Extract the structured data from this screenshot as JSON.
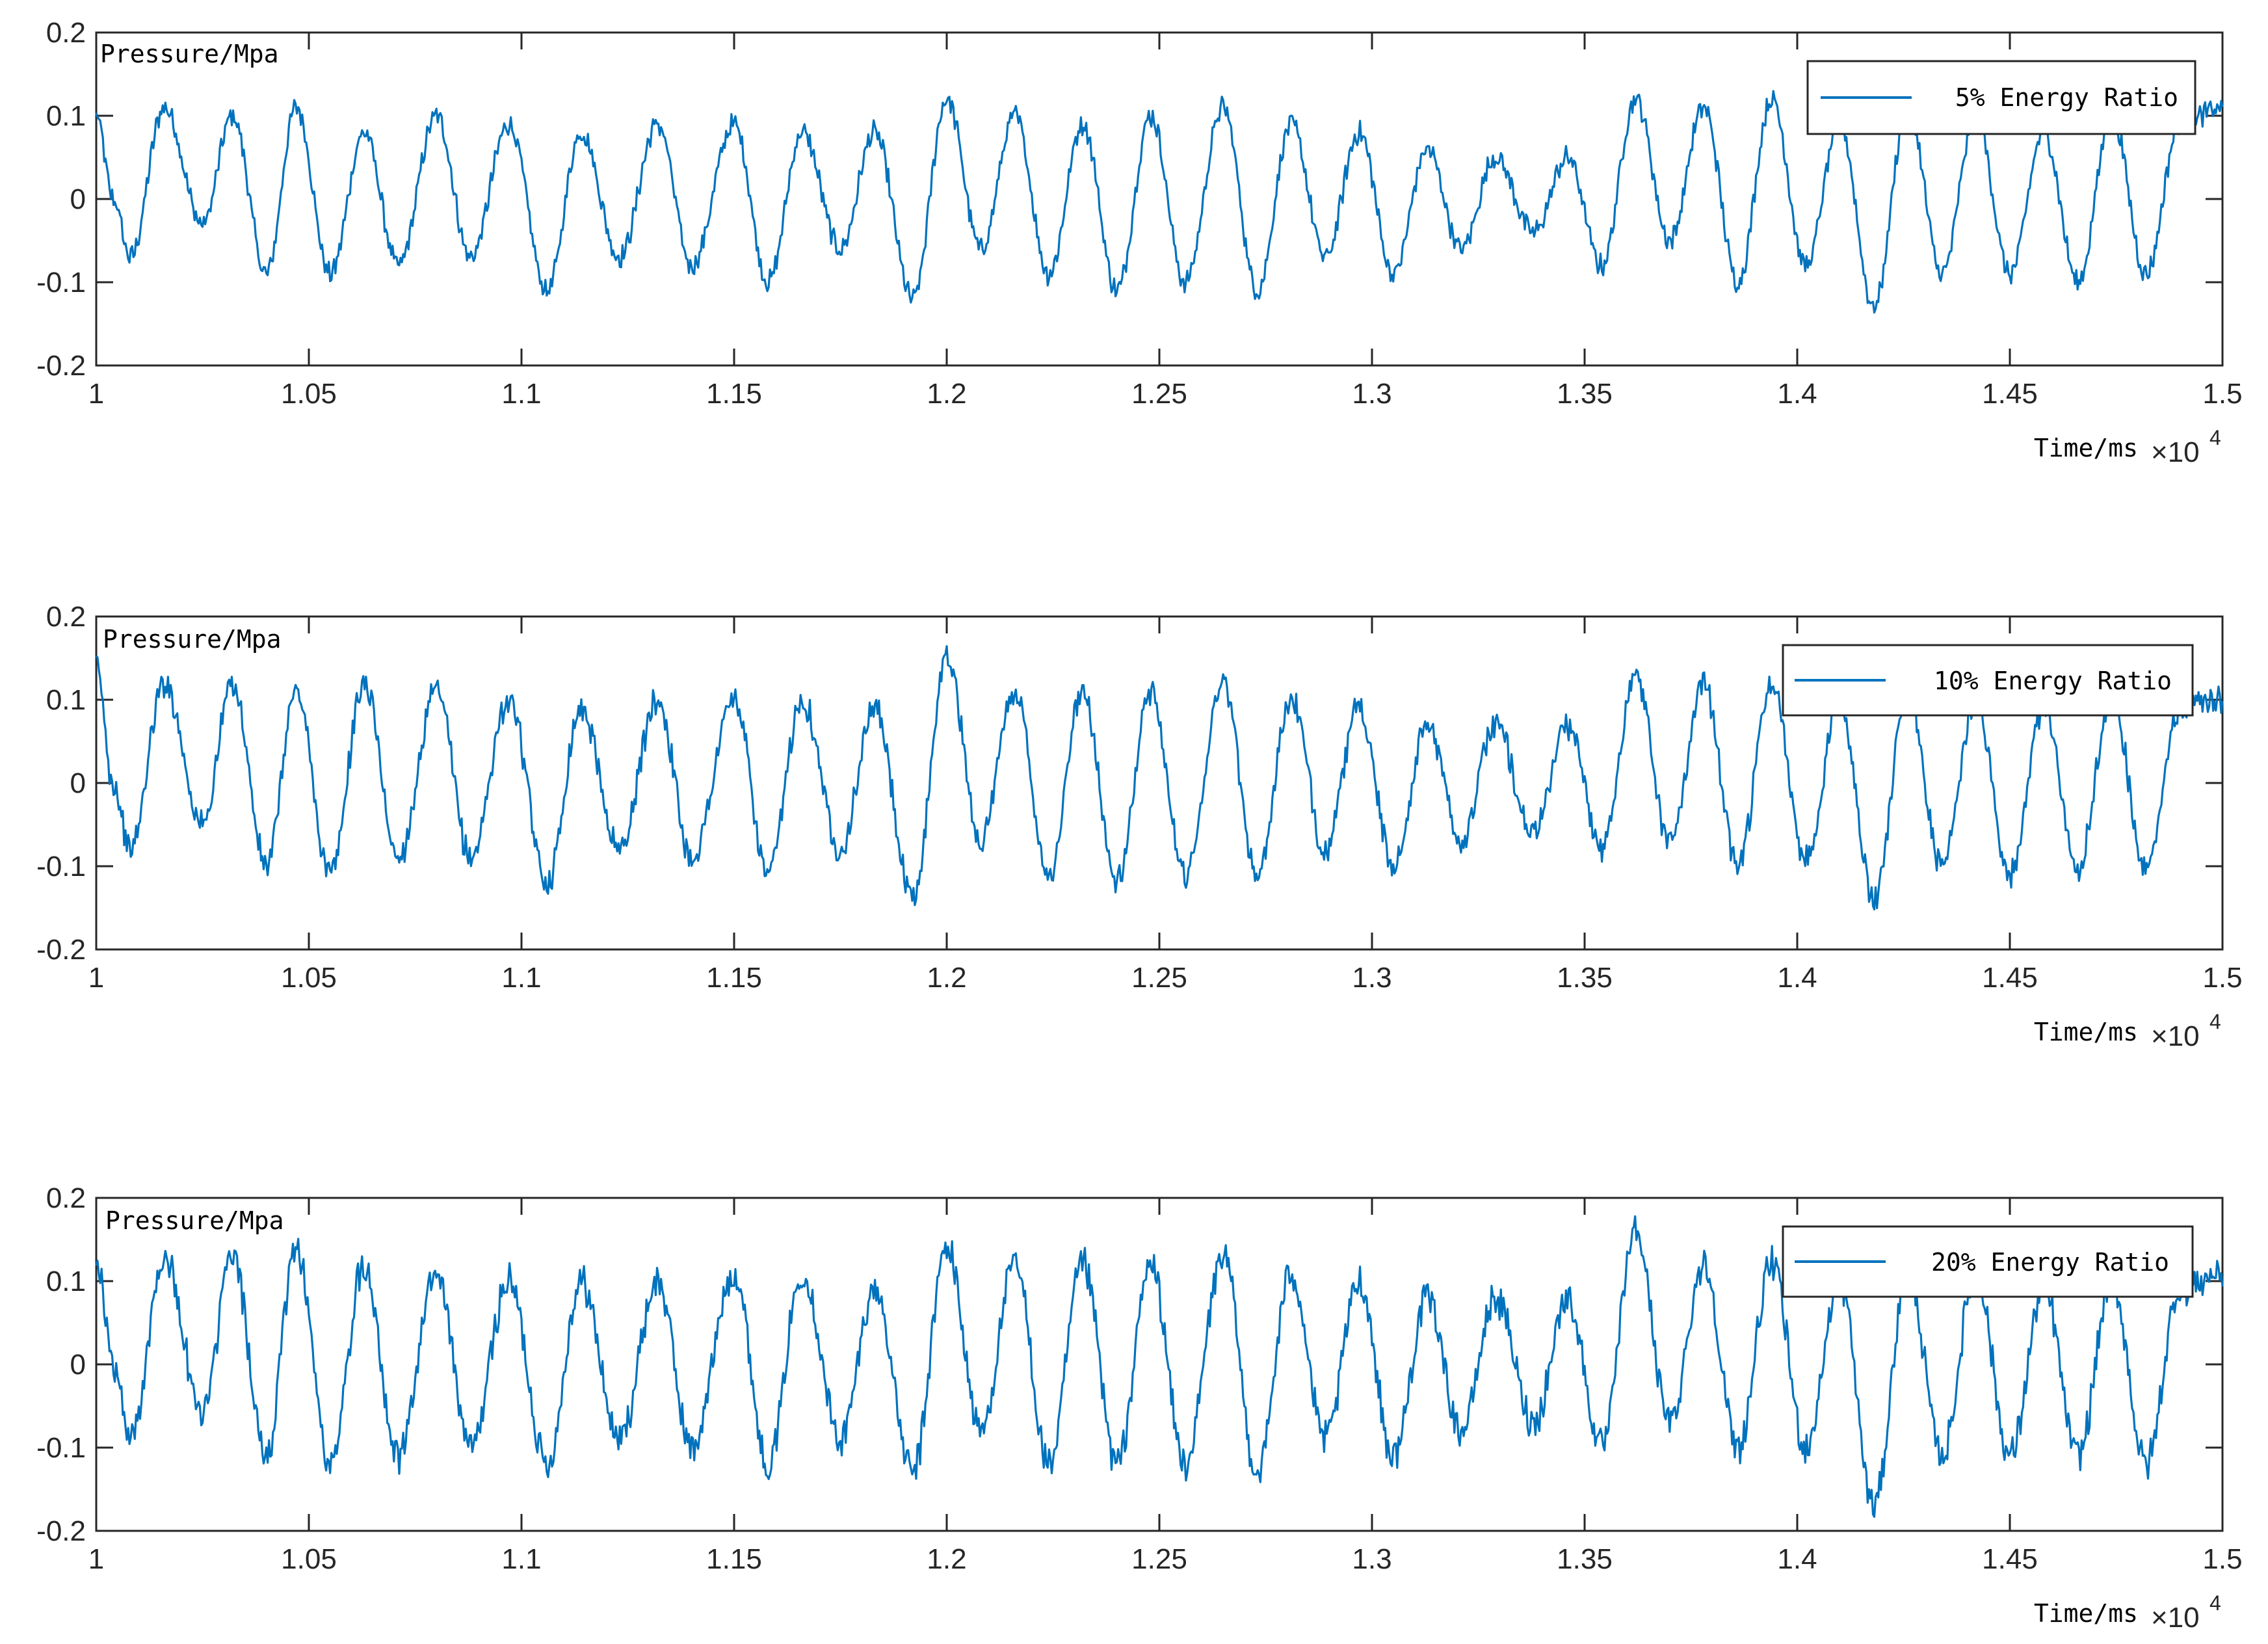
{
  "chart_data": [
    {
      "type": "line",
      "ylabel": "Pressure/Mpa",
      "xlabel": "Time/ms",
      "x_exponent": "×10",
      "x_exponent_power": "4",
      "xlim": [
        1.0,
        1.5
      ],
      "ylim": [
        -0.2,
        0.2
      ],
      "xticks": [
        "1",
        "1.05",
        "1.1",
        "1.15",
        "1.2",
        "1.25",
        "1.3",
        "1.35",
        "1.4",
        "1.45",
        "1.5"
      ],
      "yticks": [
        "0.2",
        "0.1",
        "0",
        "-0.1",
        "-0.2"
      ],
      "grid": false,
      "legend": "top-right",
      "line_color": "#0072BD",
      "series": [
        {
          "name": "5% Energy Ratio",
          "x": [
            1.0,
            1.004,
            1.008,
            1.016,
            1.025,
            1.032,
            1.04,
            1.047,
            1.055,
            1.063,
            1.071,
            1.08,
            1.088,
            1.097,
            1.106,
            1.114,
            1.123,
            1.132,
            1.14,
            1.15,
            1.158,
            1.166,
            1.175,
            1.183,
            1.192,
            1.2,
            1.208,
            1.216,
            1.224,
            1.232,
            1.24,
            1.248,
            1.256,
            1.265,
            1.273,
            1.281,
            1.289,
            1.297,
            1.305,
            1.313,
            1.321,
            1.329,
            1.338,
            1.346,
            1.354,
            1.362,
            1.37,
            1.378,
            1.386,
            1.394,
            1.402,
            1.41,
            1.418,
            1.426,
            1.434,
            1.442,
            1.45,
            1.458,
            1.466,
            1.474,
            1.482,
            1.49,
            1.5
          ],
          "y": [
            0.1,
            0.0,
            -0.07,
            0.11,
            -0.03,
            0.1,
            -0.09,
            0.11,
            -0.09,
            0.08,
            -0.08,
            0.1,
            -0.07,
            0.09,
            -0.11,
            0.08,
            -0.07,
            0.09,
            -0.08,
            0.09,
            -0.1,
            0.08,
            -0.06,
            0.08,
            -0.12,
            0.12,
            -0.06,
            0.1,
            -0.09,
            0.09,
            -0.11,
            0.1,
            -0.1,
            0.11,
            -0.11,
            0.09,
            -0.07,
            0.08,
            -0.09,
            0.06,
            -0.06,
            0.05,
            -0.04,
            0.05,
            -0.08,
            0.12,
            -0.05,
            0.11,
            -0.1,
            0.12,
            -0.08,
            0.09,
            -0.13,
            0.11,
            -0.09,
            0.1,
            -0.09,
            0.08,
            -0.1,
            0.1,
            -0.09,
            0.09,
            0.11
          ]
        }
      ]
    },
    {
      "type": "line",
      "ylabel": "Pressure/Mpa",
      "xlabel": "Time/ms",
      "x_exponent": "×10",
      "x_exponent_power": "4",
      "xlim": [
        1.0,
        1.5
      ],
      "ylim": [
        -0.2,
        0.2
      ],
      "xticks": [
        "1",
        "1.05",
        "1.1",
        "1.15",
        "1.2",
        "1.25",
        "1.3",
        "1.35",
        "1.4",
        "1.45",
        "1.5"
      ],
      "yticks": [
        "0.2",
        "0.1",
        "0",
        "-0.1",
        "-0.2"
      ],
      "grid": false,
      "legend": "top-right",
      "line_color": "#0072BD",
      "series": [
        {
          "name": "10% Energy Ratio",
          "x": [
            1.0,
            1.004,
            1.008,
            1.016,
            1.025,
            1.032,
            1.04,
            1.047,
            1.055,
            1.063,
            1.071,
            1.08,
            1.088,
            1.097,
            1.106,
            1.114,
            1.123,
            1.132,
            1.14,
            1.15,
            1.158,
            1.166,
            1.175,
            1.183,
            1.192,
            1.2,
            1.208,
            1.216,
            1.224,
            1.232,
            1.24,
            1.248,
            1.256,
            1.265,
            1.273,
            1.281,
            1.289,
            1.297,
            1.305,
            1.313,
            1.321,
            1.329,
            1.338,
            1.346,
            1.354,
            1.362,
            1.37,
            1.378,
            1.386,
            1.394,
            1.402,
            1.41,
            1.418,
            1.426,
            1.434,
            1.442,
            1.45,
            1.458,
            1.466,
            1.474,
            1.482,
            1.49,
            1.5
          ],
          "y": [
            0.14,
            0.0,
            -0.08,
            0.12,
            -0.05,
            0.12,
            -0.1,
            0.11,
            -0.11,
            0.12,
            -0.09,
            0.11,
            -0.09,
            0.1,
            -0.12,
            0.09,
            -0.08,
            0.1,
            -0.09,
            0.1,
            -0.11,
            0.1,
            -0.08,
            0.09,
            -0.14,
            0.15,
            -0.07,
            0.11,
            -0.11,
            0.11,
            -0.12,
            0.11,
            -0.11,
            0.12,
            -0.11,
            0.1,
            -0.08,
            0.09,
            -0.1,
            0.07,
            -0.07,
            0.07,
            -0.06,
            0.07,
            -0.08,
            0.13,
            -0.07,
            0.12,
            -0.1,
            0.12,
            -0.09,
            0.1,
            -0.14,
            0.11,
            -0.1,
            0.1,
            -0.11,
            0.09,
            -0.1,
            0.1,
            -0.1,
            0.09,
            0.1
          ]
        }
      ]
    },
    {
      "type": "line",
      "ylabel": "Pressure/Mpa",
      "xlabel": "Time/ms",
      "x_exponent": "×10",
      "x_exponent_power": "4",
      "xlim": [
        1.0,
        1.5
      ],
      "ylim": [
        -0.2,
        0.2
      ],
      "xticks": [
        "1",
        "1.05",
        "1.1",
        "1.15",
        "1.2",
        "1.25",
        "1.3",
        "1.35",
        "1.4",
        "1.45",
        "1.5"
      ],
      "yticks": [
        "0.2",
        "0.1",
        "0",
        "-0.1",
        "-0.2"
      ],
      "grid": false,
      "legend": "top-right",
      "line_color": "#0072BD",
      "series": [
        {
          "name": "20% Energy Ratio",
          "x": [
            1.0,
            1.004,
            1.008,
            1.016,
            1.025,
            1.032,
            1.04,
            1.047,
            1.055,
            1.063,
            1.071,
            1.08,
            1.088,
            1.097,
            1.106,
            1.114,
            1.123,
            1.132,
            1.14,
            1.15,
            1.158,
            1.166,
            1.175,
            1.183,
            1.192,
            1.2,
            1.208,
            1.216,
            1.224,
            1.232,
            1.24,
            1.248,
            1.256,
            1.265,
            1.273,
            1.281,
            1.289,
            1.297,
            1.305,
            1.313,
            1.321,
            1.329,
            1.338,
            1.346,
            1.354,
            1.362,
            1.37,
            1.378,
            1.386,
            1.394,
            1.402,
            1.41,
            1.418,
            1.426,
            1.434,
            1.442,
            1.45,
            1.458,
            1.466,
            1.474,
            1.482,
            1.49,
            1.5
          ],
          "y": [
            0.13,
            0.0,
            -0.09,
            0.13,
            -0.06,
            0.13,
            -0.11,
            0.14,
            -0.12,
            0.12,
            -0.11,
            0.11,
            -0.1,
            0.1,
            -0.12,
            0.1,
            -0.09,
            0.1,
            -0.1,
            0.11,
            -0.12,
            0.11,
            -0.09,
            0.09,
            -0.13,
            0.14,
            -0.08,
            0.12,
            -0.12,
            0.12,
            -0.12,
            0.12,
            -0.12,
            0.13,
            -0.13,
            0.11,
            -0.09,
            0.1,
            -0.11,
            0.08,
            -0.08,
            0.08,
            -0.07,
            0.08,
            -0.1,
            0.16,
            -0.07,
            0.12,
            -0.1,
            0.12,
            -0.1,
            0.1,
            -0.17,
            0.11,
            -0.11,
            0.11,
            -0.11,
            0.09,
            -0.11,
            0.1,
            -0.12,
            0.09,
            0.11
          ]
        }
      ]
    }
  ]
}
